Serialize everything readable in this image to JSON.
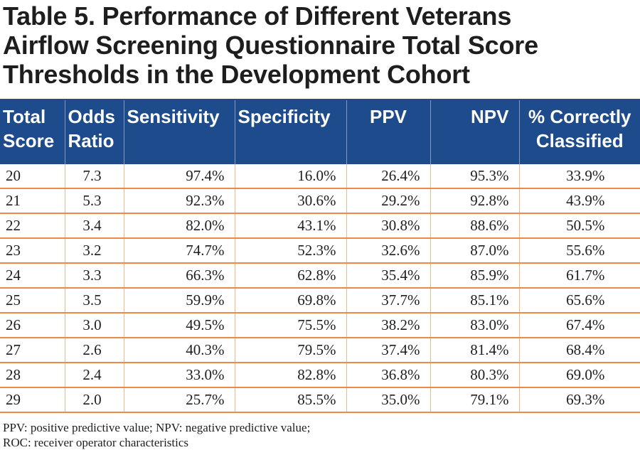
{
  "title_lines": [
    "Table 5. Performance of Different Veterans",
    "Airflow Screening Questionnaire Total Score",
    "Thresholds in the Development Cohort"
  ],
  "columns": [
    [
      "Total",
      "Score"
    ],
    [
      "Odds",
      "Ratio"
    ],
    [
      "Sensitivity"
    ],
    [
      "Specificity"
    ],
    [
      "PPV"
    ],
    [
      "NPV"
    ],
    [
      "% Correctly",
      "Classified"
    ]
  ],
  "rows": [
    [
      "20",
      "7.3",
      "97.4%",
      "16.0%",
      "26.4%",
      "95.3%",
      "33.9%"
    ],
    [
      "21",
      "5.3",
      "92.3%",
      "30.6%",
      "29.2%",
      "92.8%",
      "43.9%"
    ],
    [
      "22",
      "3.4",
      "82.0%",
      "43.1%",
      "30.8%",
      "88.6%",
      "50.5%"
    ],
    [
      "23",
      "3.2",
      "74.7%",
      "52.3%",
      "32.6%",
      "87.0%",
      "55.6%"
    ],
    [
      "24",
      "3.3",
      "66.3%",
      "62.8%",
      "35.4%",
      "85.9%",
      "61.7%"
    ],
    [
      "25",
      "3.5",
      "59.9%",
      "69.8%",
      "37.7%",
      "85.1%",
      "65.6%"
    ],
    [
      "26",
      "3.0",
      "49.5%",
      "75.5%",
      "38.2%",
      "83.0%",
      "67.4%"
    ],
    [
      "27",
      "2.6",
      "40.3%",
      "79.5%",
      "37.4%",
      "81.4%",
      "68.4%"
    ],
    [
      "28",
      "2.4",
      "33.0%",
      "82.8%",
      "36.8%",
      "80.3%",
      "69.0%"
    ],
    [
      "29",
      "2.0",
      "25.7%",
      "85.5%",
      "35.0%",
      "79.1%",
      "69.3%"
    ]
  ],
  "footnotes": [
    "PPV:  positive predictive value; NPV:  negative predictive value;",
    "ROC:  receiver operator characteristics"
  ],
  "colors": {
    "header_bg": "#1d4b8b",
    "row_rule": "#ee8a45"
  }
}
